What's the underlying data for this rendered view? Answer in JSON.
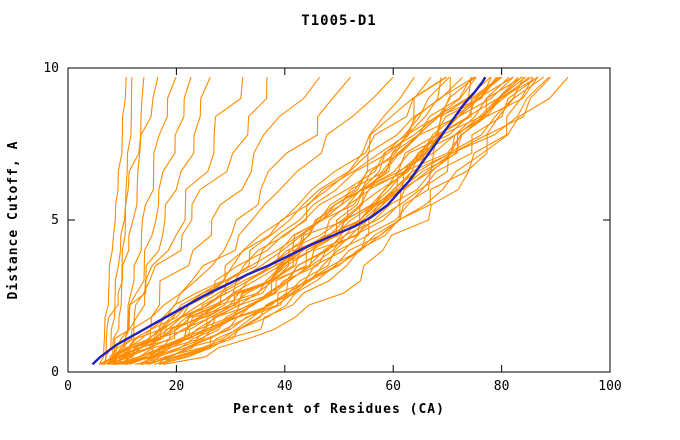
{
  "title": "T1005-D1",
  "colors": {
    "model_line": "#ff8c00",
    "highlight_line": "#2020c0",
    "frame": "#000000",
    "background": "#ffffff"
  },
  "chart_data": {
    "type": "line",
    "title": "T1005-D1",
    "xlabel": "Percent of Residues (CA)",
    "ylabel": "Distance Cutoff, A",
    "xlim": [
      0,
      100
    ],
    "ylim": [
      0,
      10
    ],
    "xticks": [
      0,
      20,
      40,
      60,
      80,
      100
    ],
    "yticks": [
      0,
      5,
      10
    ],
    "grid": false,
    "legend": null,
    "cutoff_samples": [
      0.25,
      0.5,
      0.8,
      1.1,
      1.4,
      1.8,
      2.2,
      2.6,
      3.0,
      3.5,
      4.0,
      4.5,
      5.0,
      5.5,
      6.0,
      6.6,
      7.2,
      7.8,
      8.4,
      9.0,
      9.7
    ],
    "highlight_series": {
      "name": "selected-model",
      "color": "#2020c0",
      "points": [
        [
          4.5,
          0.25
        ],
        [
          6,
          0.5
        ],
        [
          9,
          0.9
        ],
        [
          13,
          1.3
        ],
        [
          17,
          1.7
        ],
        [
          21,
          2.1
        ],
        [
          25,
          2.5
        ],
        [
          29,
          2.85
        ],
        [
          33,
          3.2
        ],
        [
          37,
          3.5
        ],
        [
          41,
          3.85
        ],
        [
          45,
          4.2
        ],
        [
          49,
          4.5
        ],
        [
          53,
          4.8
        ],
        [
          56,
          5.1
        ],
        [
          59,
          5.5
        ],
        [
          61,
          5.9
        ],
        [
          63,
          6.3
        ],
        [
          65,
          6.8
        ],
        [
          67,
          7.3
        ],
        [
          69,
          7.8
        ],
        [
          71,
          8.3
        ],
        [
          73,
          8.8
        ],
        [
          75,
          9.2
        ],
        [
          76.5,
          9.55
        ],
        [
          77,
          9.7
        ]
      ]
    },
    "model_series": [
      {
        "start": 6,
        "end": 10.5,
        "exp": 1.0,
        "wig": 0.6,
        "seed": 1
      },
      {
        "start": 7,
        "end": 12,
        "exp": 0.9,
        "wig": 0.8,
        "seed": 2
      },
      {
        "start": 8,
        "end": 14,
        "exp": 1.1,
        "wig": 0.9,
        "seed": 3
      },
      {
        "start": 6,
        "end": 16,
        "exp": 0.95,
        "wig": 1.0,
        "seed": 4
      },
      {
        "start": 9,
        "end": 19,
        "exp": 1.15,
        "wig": 1.2,
        "seed": 5
      },
      {
        "start": 7,
        "end": 23,
        "exp": 0.85,
        "wig": 1.4,
        "seed": 6
      },
      {
        "start": 8,
        "end": 27,
        "exp": 1.0,
        "wig": 1.6,
        "seed": 7
      },
      {
        "start": 6,
        "end": 32,
        "exp": 0.9,
        "wig": 1.8,
        "seed": 8
      },
      {
        "start": 7,
        "end": 38,
        "exp": 1.05,
        "wig": 2.0,
        "seed": 9
      },
      {
        "start": 6,
        "end": 45,
        "exp": 0.95,
        "wig": 2.2,
        "seed": 10
      },
      {
        "start": 5,
        "end": 52,
        "exp": 0.85,
        "wig": 2.0,
        "seed": 11
      },
      {
        "start": 6,
        "end": 58,
        "exp": 0.9,
        "wig": 2.0,
        "seed": 12
      },
      {
        "start": 4,
        "end": 65,
        "exp": 0.75,
        "wig": 2.2,
        "seed": 13
      },
      {
        "start": 5,
        "end": 67,
        "exp": 0.6,
        "wig": 2.0,
        "seed": 14
      },
      {
        "start": 4,
        "end": 68,
        "exp": 0.8,
        "wig": 2.4,
        "seed": 15
      },
      {
        "start": 5,
        "end": 70,
        "exp": 0.55,
        "wig": 2.0,
        "seed": 16
      },
      {
        "start": 4,
        "end": 70,
        "exp": 0.9,
        "wig": 2.2,
        "seed": 17
      },
      {
        "start": 6,
        "end": 71,
        "exp": 0.7,
        "wig": 1.8,
        "seed": 18
      },
      {
        "start": 4,
        "end": 72,
        "exp": 0.65,
        "wig": 2.6,
        "seed": 19
      },
      {
        "start": 5,
        "end": 73,
        "exp": 0.85,
        "wig": 2.0,
        "seed": 20
      },
      {
        "start": 4,
        "end": 74,
        "exp": 0.5,
        "wig": 2.2,
        "seed": 21
      },
      {
        "start": 5,
        "end": 74,
        "exp": 0.95,
        "wig": 2.4,
        "seed": 22
      },
      {
        "start": 6,
        "end": 75,
        "exp": 0.7,
        "wig": 1.8,
        "seed": 23
      },
      {
        "start": 4,
        "end": 76,
        "exp": 0.6,
        "wig": 2.0,
        "seed": 24
      },
      {
        "start": 5,
        "end": 76,
        "exp": 0.8,
        "wig": 2.4,
        "seed": 25
      },
      {
        "start": 4,
        "end": 77,
        "exp": 0.9,
        "wig": 2.0,
        "seed": 26
      },
      {
        "start": 5,
        "end": 78,
        "exp": 0.55,
        "wig": 2.2,
        "seed": 27
      },
      {
        "start": 6,
        "end": 78,
        "exp": 0.75,
        "wig": 2.6,
        "seed": 28
      },
      {
        "start": 4,
        "end": 79,
        "exp": 0.65,
        "wig": 2.0,
        "seed": 29
      },
      {
        "start": 5,
        "end": 79,
        "exp": 0.85,
        "wig": 2.2,
        "seed": 30
      },
      {
        "start": 4,
        "end": 80,
        "exp": 0.7,
        "wig": 2.4,
        "seed": 31
      },
      {
        "start": 5,
        "end": 80,
        "exp": 0.95,
        "wig": 2.0,
        "seed": 32
      },
      {
        "start": 6,
        "end": 81,
        "exp": 0.6,
        "wig": 2.2,
        "seed": 33
      },
      {
        "start": 4,
        "end": 81,
        "exp": 0.8,
        "wig": 2.6,
        "seed": 34
      },
      {
        "start": 5,
        "end": 82,
        "exp": 0.5,
        "wig": 2.0,
        "seed": 35
      },
      {
        "start": 4,
        "end": 82,
        "exp": 0.75,
        "wig": 2.4,
        "seed": 36
      },
      {
        "start": 5,
        "end": 83,
        "exp": 0.9,
        "wig": 2.0,
        "seed": 37
      },
      {
        "start": 6,
        "end": 83,
        "exp": 0.65,
        "wig": 2.2,
        "seed": 38
      },
      {
        "start": 4,
        "end": 84,
        "exp": 0.8,
        "wig": 2.6,
        "seed": 39
      },
      {
        "start": 5,
        "end": 84,
        "exp": 0.55,
        "wig": 2.0,
        "seed": 40
      },
      {
        "start": 4,
        "end": 85,
        "exp": 0.7,
        "wig": 2.4,
        "seed": 41
      },
      {
        "start": 5,
        "end": 85,
        "exp": 0.9,
        "wig": 2.0,
        "seed": 42
      },
      {
        "start": 6,
        "end": 86,
        "exp": 0.6,
        "wig": 2.2,
        "seed": 43
      },
      {
        "start": 4,
        "end": 86,
        "exp": 0.8,
        "wig": 2.4,
        "seed": 44
      },
      {
        "start": 5,
        "end": 87,
        "exp": 0.7,
        "wig": 2.0,
        "seed": 45
      },
      {
        "start": 4,
        "end": 88,
        "exp": 0.85,
        "wig": 2.2,
        "seed": 46
      },
      {
        "start": 5,
        "end": 89,
        "exp": 0.6,
        "wig": 2.4,
        "seed": 47
      },
      {
        "start": 4,
        "end": 90,
        "exp": 0.75,
        "wig": 2.0,
        "seed": 48
      },
      {
        "start": 5,
        "end": 91,
        "exp": 0.65,
        "wig": 2.2,
        "seed": 49
      },
      {
        "start": 6,
        "end": 88,
        "exp": 0.5,
        "wig": 2.6,
        "seed": 50
      }
    ]
  }
}
